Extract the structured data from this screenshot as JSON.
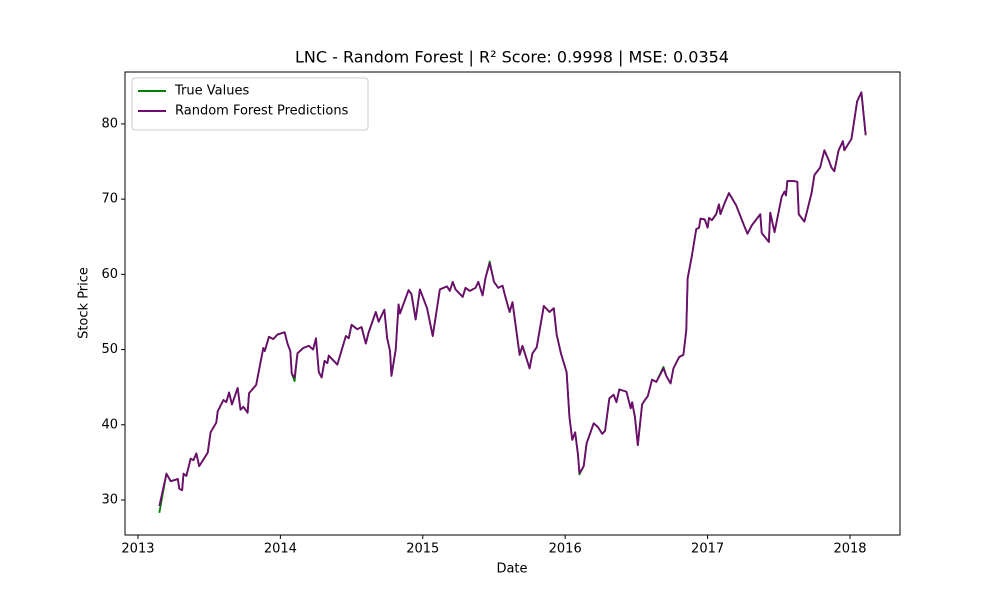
{
  "chart_data": {
    "type": "line",
    "title": "LNC - Random Forest | R² Score: 0.9998 | MSE: 0.0354",
    "x_label": "Date",
    "y_label": "Stock Price",
    "x": [
      2013.15,
      2013.2,
      2013.23,
      2013.28,
      2013.29,
      2013.31,
      2013.32,
      2013.34,
      2013.37,
      2013.39,
      2013.41,
      2013.43,
      2013.49,
      2013.51,
      2013.55,
      2013.56,
      2013.6,
      2013.62,
      2013.64,
      2013.66,
      2013.7,
      2013.72,
      2013.74,
      2013.77,
      2013.78,
      2013.83,
      2013.88,
      2013.89,
      2013.92,
      2013.95,
      2013.98,
      2014.03,
      2014.05,
      2014.07,
      2014.08,
      2014.1,
      2014.12,
      2014.16,
      2014.2,
      2014.23,
      2014.25,
      2014.27,
      2014.29,
      2014.31,
      2014.33,
      2014.34,
      2014.4,
      2014.46,
      2014.48,
      2014.5,
      2014.54,
      2014.57,
      2014.6,
      2014.62,
      2014.67,
      2014.69,
      2014.73,
      2014.75,
      2014.77,
      2014.78,
      2014.81,
      2014.83,
      2014.84,
      2014.9,
      2014.92,
      2014.95,
      2014.98,
      2015.03,
      2015.07,
      2015.12,
      2015.17,
      2015.19,
      2015.21,
      2015.23,
      2015.28,
      2015.3,
      2015.33,
      2015.37,
      2015.39,
      2015.42,
      2015.44,
      2015.47,
      2015.5,
      2015.53,
      2015.56,
      2015.58,
      2015.61,
      2015.63,
      2015.68,
      2015.7,
      2015.75,
      2015.77,
      2015.8,
      2015.85,
      2015.89,
      2015.92,
      2015.94,
      2015.97,
      2016.01,
      2016.03,
      2016.05,
      2016.07,
      2016.09,
      2016.1,
      2016.13,
      2016.15,
      2016.2,
      2016.23,
      2016.26,
      2016.28,
      2016.31,
      2016.34,
      2016.36,
      2016.38,
      2016.43,
      2016.46,
      2016.47,
      2016.49,
      2016.51,
      2016.54,
      2016.56,
      2016.58,
      2016.61,
      2016.64,
      2016.69,
      2016.71,
      2016.74,
      2016.76,
      2016.8,
      2016.83,
      2016.85,
      2016.86,
      2016.89,
      2016.92,
      2016.94,
      2016.95,
      2016.98,
      2017.0,
      2017.01,
      2017.03,
      2017.06,
      2017.08,
      2017.09,
      2017.12,
      2017.15,
      2017.2,
      2017.26,
      2017.28,
      2017.31,
      2017.37,
      2017.38,
      2017.43,
      2017.44,
      2017.47,
      2017.52,
      2017.54,
      2017.55,
      2017.56,
      2017.61,
      2017.63,
      2017.64,
      2017.68,
      2017.73,
      2017.75,
      2017.79,
      2017.82,
      2017.85,
      2017.87,
      2017.89,
      2017.92,
      2017.95,
      2017.96,
      2018.01,
      2018.05,
      2018.08,
      2018.11
    ],
    "series": [
      {
        "name": "True Values",
        "color": "#008000",
        "values": [
          28.3,
          33.5,
          32.5,
          32.8,
          31.5,
          31.3,
          33.5,
          33.2,
          35.5,
          35.3,
          36.2,
          34.5,
          36.3,
          39,
          40.3,
          41.8,
          43.3,
          43,
          44.3,
          42.7,
          44.9,
          42,
          42.4,
          41.6,
          44.2,
          45.3,
          50.2,
          49.8,
          51.7,
          51.4,
          52,
          52.3,
          50.8,
          49.8,
          46.8,
          45.8,
          49.5,
          50.2,
          50.5,
          50,
          51.5,
          47,
          46.3,
          48.5,
          48.2,
          49.2,
          48,
          51.8,
          51.5,
          53.3,
          52.7,
          53,
          50.8,
          52.3,
          55,
          53.7,
          55.3,
          51.5,
          49.8,
          46.5,
          50,
          56,
          54.8,
          57.9,
          57.4,
          54,
          58,
          55.5,
          51.8,
          58,
          58.4,
          57.8,
          59,
          58,
          57,
          58.2,
          57.8,
          58.2,
          59,
          57.2,
          59.5,
          61.7,
          59,
          58.2,
          58.5,
          57,
          55,
          56.3,
          49.3,
          50.5,
          47.5,
          49.5,
          50.3,
          55.8,
          55,
          55.5,
          52,
          49.5,
          47,
          41,
          38,
          39,
          36,
          33.4,
          34.5,
          37.5,
          40.2,
          39.7,
          38.8,
          39.2,
          43.5,
          44,
          43,
          44.7,
          44.4,
          42.2,
          43,
          41,
          37.3,
          42.7,
          43.3,
          43.8,
          46,
          45.7,
          47.7,
          46.5,
          45.5,
          47.5,
          49,
          49.3,
          52.5,
          59.5,
          62.5,
          66,
          66.2,
          67.4,
          67.3,
          66.2,
          67.5,
          67.2,
          68,
          69.3,
          68,
          69.5,
          70.8,
          69.2,
          66.3,
          65.4,
          66.5,
          68,
          65.5,
          64.3,
          68.2,
          65.6,
          70.3,
          71,
          70.5,
          72.4,
          72.4,
          72.3,
          68,
          67,
          70.8,
          73.2,
          74.2,
          76.5,
          75.2,
          74.2,
          73.7,
          76.5,
          77.7,
          76.5,
          78,
          83,
          84.2,
          78.5
        ]
      },
      {
        "name": "Random Forest Predictions",
        "color": "#700a70",
        "values": [
          29.2,
          33.5,
          32.5,
          32.8,
          31.5,
          31.3,
          33.5,
          33.2,
          35.5,
          35.3,
          36.2,
          34.5,
          36.3,
          39,
          40.3,
          41.8,
          43.3,
          43,
          44.3,
          42.7,
          44.9,
          42,
          42.4,
          41.6,
          44.2,
          45.3,
          50.2,
          49.8,
          51.7,
          51.4,
          52,
          52.3,
          50.8,
          49.8,
          46.8,
          46.3,
          49.5,
          50.2,
          50.5,
          50,
          51.5,
          47,
          46.3,
          48.5,
          48.2,
          49.2,
          48,
          51.8,
          51.5,
          53.3,
          52.7,
          53,
          50.8,
          52.3,
          55,
          53.7,
          55.3,
          51.5,
          49.8,
          46.5,
          50,
          56,
          54.8,
          57.9,
          57.4,
          54,
          58,
          55.5,
          51.8,
          58,
          58.4,
          57.8,
          59,
          58,
          57,
          58.2,
          57.8,
          58.2,
          59,
          57.2,
          59.5,
          61.5,
          59,
          58.2,
          58.5,
          57,
          55,
          56.3,
          49.3,
          50.5,
          47.5,
          49.5,
          50.3,
          55.8,
          55,
          55.5,
          52,
          49.5,
          47,
          41,
          38,
          39,
          36,
          33.6,
          34.5,
          37.5,
          40.2,
          39.7,
          38.8,
          39.2,
          43.5,
          44,
          43,
          44.7,
          44.4,
          42.2,
          43,
          41,
          37.3,
          42.7,
          43.3,
          43.8,
          46,
          45.7,
          47.5,
          46.5,
          45.5,
          47.5,
          49,
          49.3,
          52.5,
          59.5,
          62.5,
          66,
          66.2,
          67.4,
          67.3,
          66.2,
          67.5,
          67.2,
          68,
          69.3,
          68,
          69.5,
          70.8,
          69.2,
          66.3,
          65.4,
          66.5,
          68,
          65.5,
          64.3,
          68.2,
          65.6,
          70.3,
          71,
          70.5,
          72.4,
          72.4,
          72.3,
          68,
          67,
          70.8,
          73.2,
          74.2,
          76.5,
          75.2,
          74.2,
          73.7,
          76.5,
          77.7,
          76.5,
          78,
          83,
          84.2,
          78.5
        ]
      }
    ],
    "xlim": [
      2012.909,
      2018.351
    ],
    "xticks": [
      2013,
      2014,
      2015,
      2016,
      2017,
      2018
    ],
    "ylim": [
      25.35,
      86.9
    ],
    "yticks": [
      30,
      40,
      50,
      60,
      70,
      80
    ],
    "grid": false,
    "legend": "upper-left"
  }
}
